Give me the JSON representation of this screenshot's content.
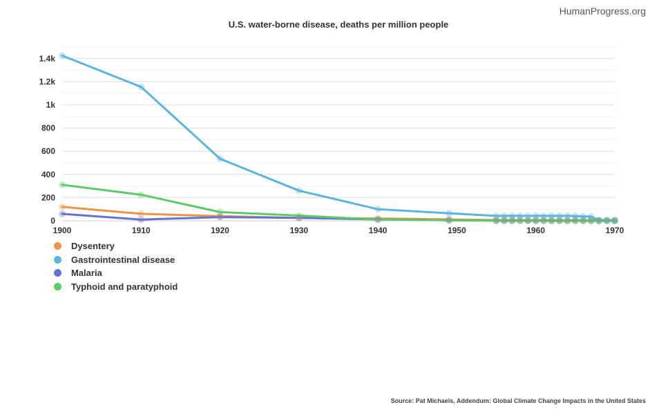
{
  "brand": "HumanProgress.org",
  "source": "Source: Pat Michaels, Addendum: Global Climate Change Impacts in the United States",
  "chart_data": {
    "type": "line",
    "title": "U.S. water-borne disease, deaths per million people",
    "xlabel": "",
    "ylabel": "",
    "xlim": [
      1900,
      1970
    ],
    "ylim": [
      0,
      1400
    ],
    "x_ticks": [
      "1900",
      "1910",
      "1920",
      "1930",
      "1940",
      "1950",
      "1960",
      "1970"
    ],
    "y_ticks": [
      "0",
      "200",
      "400",
      "600",
      "800",
      "1k",
      "1.2k",
      "1.4k"
    ],
    "grid": true,
    "legend_position": "bottom-left",
    "series": [
      {
        "name": "Dysentery",
        "color": "#ed9447",
        "points": [
          [
            1900,
            120
          ],
          [
            1910,
            60
          ],
          [
            1920,
            40
          ],
          [
            1930,
            25
          ],
          [
            1940,
            20
          ],
          [
            1949,
            12
          ],
          [
            1955,
            6
          ],
          [
            1956,
            5
          ],
          [
            1957,
            5
          ],
          [
            1958,
            5
          ],
          [
            1959,
            4
          ],
          [
            1960,
            4
          ],
          [
            1961,
            4
          ],
          [
            1962,
            3
          ],
          [
            1963,
            3
          ],
          [
            1964,
            3
          ],
          [
            1965,
            3
          ],
          [
            1966,
            2
          ],
          [
            1967,
            2
          ],
          [
            1968,
            2
          ],
          [
            1969,
            2
          ],
          [
            1970,
            2
          ]
        ]
      },
      {
        "name": "Gastrointestinal disease",
        "color": "#5ab4df",
        "points": [
          [
            1900,
            1425
          ],
          [
            1910,
            1155
          ],
          [
            1920,
            535
          ],
          [
            1930,
            260
          ],
          [
            1940,
            100
          ],
          [
            1949,
            65
          ],
          [
            1955,
            42
          ],
          [
            1956,
            42
          ],
          [
            1957,
            42
          ],
          [
            1958,
            42
          ],
          [
            1959,
            42
          ],
          [
            1960,
            42
          ],
          [
            1961,
            42
          ],
          [
            1962,
            42
          ],
          [
            1963,
            42
          ],
          [
            1964,
            42
          ],
          [
            1965,
            40
          ],
          [
            1966,
            38
          ],
          [
            1967,
            36
          ],
          [
            1968,
            5
          ],
          [
            1969,
            5
          ],
          [
            1970,
            5
          ]
        ]
      },
      {
        "name": "Malaria",
        "color": "#6372cf",
        "points": [
          [
            1900,
            60
          ],
          [
            1910,
            10
          ],
          [
            1920,
            32
          ],
          [
            1930,
            25
          ],
          [
            1940,
            12
          ],
          [
            1949,
            5
          ],
          [
            1955,
            1
          ],
          [
            1956,
            1
          ],
          [
            1957,
            1
          ],
          [
            1958,
            1
          ],
          [
            1959,
            1
          ],
          [
            1960,
            1
          ],
          [
            1961,
            1
          ],
          [
            1962,
            1
          ],
          [
            1963,
            1
          ],
          [
            1964,
            1
          ],
          [
            1965,
            1
          ],
          [
            1966,
            1
          ],
          [
            1967,
            1
          ],
          [
            1968,
            1
          ],
          [
            1969,
            1
          ],
          [
            1970,
            1
          ]
        ]
      },
      {
        "name": "Typhoid and paratyphoid",
        "color": "#5cca66",
        "points": [
          [
            1900,
            310
          ],
          [
            1910,
            225
          ],
          [
            1920,
            75
          ],
          [
            1930,
            45
          ],
          [
            1940,
            10
          ],
          [
            1949,
            4
          ],
          [
            1955,
            2
          ],
          [
            1956,
            2
          ],
          [
            1957,
            2
          ],
          [
            1958,
            2
          ],
          [
            1959,
            2
          ],
          [
            1960,
            1
          ],
          [
            1961,
            1
          ],
          [
            1962,
            1
          ],
          [
            1963,
            1
          ],
          [
            1964,
            1
          ],
          [
            1965,
            1
          ],
          [
            1966,
            1
          ],
          [
            1967,
            1
          ],
          [
            1968,
            1
          ],
          [
            1969,
            1
          ],
          [
            1970,
            1
          ]
        ]
      }
    ]
  }
}
